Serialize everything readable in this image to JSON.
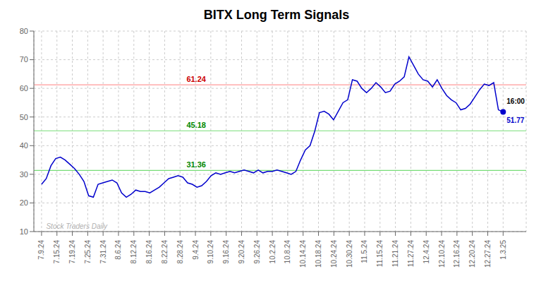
{
  "chart_data": {
    "type": "line",
    "title": "BITX Long Term Signals",
    "color": "#0000cc",
    "grid": true,
    "x": [
      0,
      0.3061,
      0.6122,
      0.9184,
      1.2245,
      1.5306,
      1.8367,
      2.1429,
      2.449,
      2.7551,
      3.0612,
      3.3673,
      3.6735,
      3.9796,
      4.2857,
      4.5918,
      4.898,
      5.2041,
      5.5102,
      5.8163,
      6.1224,
      6.4286,
      6.7347,
      7.0408,
      7.3469,
      7.6531,
      7.9592,
      8.2653,
      8.5714,
      8.8776,
      9.1837,
      9.4898,
      9.7959,
      10.102,
      10.4082,
      10.7143,
      11.0204,
      11.3265,
      11.6327,
      11.9388,
      12.2449,
      12.551,
      12.8571,
      13.1633,
      13.4694,
      13.7755,
      14.0816,
      14.3878,
      14.6939,
      15,
      15.3061,
      15.6122,
      15.9184,
      16.2245,
      16.5306,
      16.8367,
      17.1429,
      17.449,
      17.7551,
      18.0612,
      18.3673,
      18.6735,
      18.9796,
      19.2857,
      19.5918,
      19.898,
      20.2041,
      20.5102,
      20.8163,
      21.1224,
      21.4286,
      21.7347,
      22.0408,
      22.3469,
      22.6531,
      22.9592,
      23.2653,
      23.5714,
      23.8776,
      24.1837,
      24.4898,
      24.7959,
      25.102,
      25.4082,
      25.7143,
      26.0204,
      26.3265,
      26.6327,
      26.9388,
      27.2449,
      27.551,
      27.8571,
      28.1633,
      28.4694,
      28.7755,
      29.0816,
      29.3878,
      29.6939,
      30
    ],
    "values": [
      26.5,
      28.5,
      33.0,
      35.5,
      36.0,
      35.0,
      33.5,
      32.0,
      30.0,
      27.5,
      22.5,
      22.0,
      26.5,
      27.0,
      27.5,
      28.0,
      27.0,
      23.5,
      22.0,
      23.0,
      24.5,
      24.0,
      24.0,
      23.5,
      24.5,
      25.5,
      27.0,
      28.5,
      29.0,
      29.5,
      29.0,
      27.0,
      26.5,
      25.5,
      26.0,
      27.5,
      29.5,
      30.5,
      30.0,
      30.5,
      31.0,
      30.5,
      31.0,
      31.5,
      31.0,
      30.5,
      31.5,
      30.5,
      31.0,
      31.0,
      31.5,
      31.0,
      30.5,
      30.0,
      31.0,
      35.0,
      38.5,
      40.0,
      45.0,
      51.5,
      52.0,
      51.0,
      49.0,
      52.0,
      55.0,
      56.0,
      63.0,
      62.5,
      60.0,
      58.5,
      60.0,
      62.0,
      60.5,
      58.5,
      59.0,
      61.5,
      62.5,
      64.0,
      71.0,
      68.0,
      65.0,
      63.0,
      62.5,
      60.5,
      63.0,
      60.0,
      57.5,
      56.0,
      55.0,
      52.5,
      53.0,
      54.5,
      57.0,
      59.5,
      61.5,
      61.0,
      62.0,
      52.5,
      51.77
    ],
    "xlim": [
      -0.5,
      31.5
    ],
    "xticks": [
      {
        "value": 0,
        "label": "7.9.24"
      },
      {
        "value": 1,
        "label": "7.15.24"
      },
      {
        "value": 2,
        "label": "7.19.24"
      },
      {
        "value": 3,
        "label": "7.25.24"
      },
      {
        "value": 4,
        "label": "7.31.24"
      },
      {
        "value": 5,
        "label": "8.6.24"
      },
      {
        "value": 6,
        "label": "8.12.24"
      },
      {
        "value": 7,
        "label": "8.16.24"
      },
      {
        "value": 8,
        "label": "8.22.24"
      },
      {
        "value": 9,
        "label": "8.28.24"
      },
      {
        "value": 10,
        "label": "9.4.24"
      },
      {
        "value": 11,
        "label": "9.10.24"
      },
      {
        "value": 12,
        "label": "9.16.24"
      },
      {
        "value": 13,
        "label": "9.20.24"
      },
      {
        "value": 14,
        "label": "9.26.24"
      },
      {
        "value": 15,
        "label": "10.2.24"
      },
      {
        "value": 16,
        "label": "10.8.24"
      },
      {
        "value": 17,
        "label": "10.14.24"
      },
      {
        "value": 18,
        "label": "10.18.24"
      },
      {
        "value": 19,
        "label": "10.24.24"
      },
      {
        "value": 20,
        "label": "10.30.24"
      },
      {
        "value": 21,
        "label": "11.5.24"
      },
      {
        "value": 22,
        "label": "11.15.24"
      },
      {
        "value": 23,
        "label": "11.21.24"
      },
      {
        "value": 24,
        "label": "11.27.24"
      },
      {
        "value": 25,
        "label": "12.4.24"
      },
      {
        "value": 26,
        "label": "12.10.24"
      },
      {
        "value": 27,
        "label": "12.16.24"
      },
      {
        "value": 28,
        "label": "12.20.24"
      },
      {
        "value": 29,
        "label": "12.27.24"
      },
      {
        "value": 30,
        "label": "1.3.25"
      }
    ],
    "ylim": [
      10,
      80
    ],
    "yticks": [
      10,
      20,
      30,
      40,
      50,
      60,
      70,
      80
    ],
    "reference_lines": [
      {
        "y": 61.24,
        "color": "#ff9999",
        "label": "61.24",
        "label_color": "#cc0000"
      },
      {
        "y": 45.18,
        "color": "#77dd77",
        "label": "45.18",
        "label_color": "#008800"
      },
      {
        "y": 31.36,
        "color": "#77dd77",
        "label": "31.36",
        "label_color": "#008800"
      }
    ],
    "watermark": {
      "text": "Stock Traders Daily",
      "color": "#b0b0b0",
      "x": 0.3,
      "y": 10.6
    },
    "end_labels": [
      {
        "text": "16:00",
        "color": "#000000"
      },
      {
        "text": "51.77",
        "color": "#0000cc",
        "marker": "circle"
      }
    ]
  }
}
